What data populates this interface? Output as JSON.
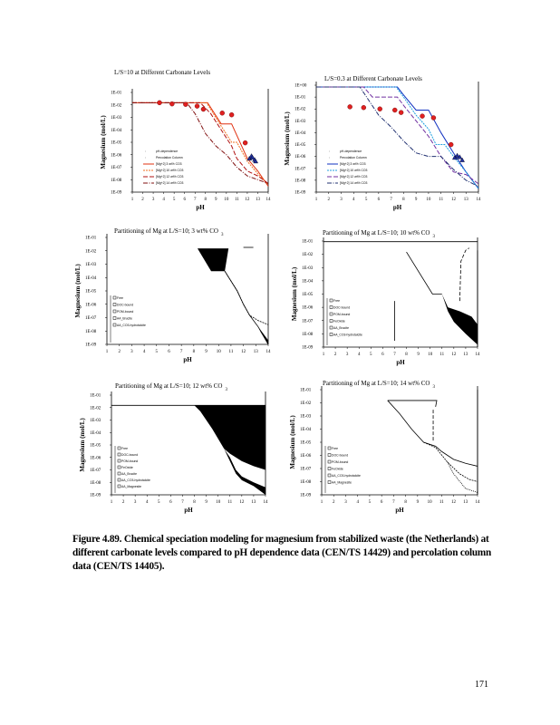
{
  "caption": "Figure 4.89.   Chemical speciation modeling for magnesium from stabilized waste (the Netherlands) at different carbonate levels compared to pH dependence data (CEN/TS 14429) and percolation column data (CEN/TS 14405).",
  "page_number": "171",
  "chart_data": [
    {
      "type": "line",
      "title": "L/S=10   at  Different    Carbonate Levels",
      "xlabel": "pH",
      "ylabel": "Magnesium    (mol/L)",
      "xlim": [
        1,
        14
      ],
      "ylim_exp": [
        -9,
        -1
      ],
      "xticks": [
        "1",
        "2",
        "3",
        "4",
        "5",
        "6",
        "7",
        "8",
        "9",
        "10",
        "11",
        "12",
        "13",
        "14"
      ],
      "yticks": [
        "1E-01",
        "1E-02",
        "1E-03",
        "1E-04",
        "1E-05",
        "1E-06",
        "1E-07",
        "1E-08",
        "1E-09"
      ],
      "legend": [
        "pH-dependence",
        "Percolation   Column",
        "[Mg+2]   3 wt%   CO3",
        "[Mg+2]   10 wt%   CO3",
        "[Mg+2]   12 wt%   CO3",
        "[Mg+2]   14 wt%   CO3"
      ],
      "legend_position": "bottom-left",
      "points": [
        {
          "name": "pH-dependence",
          "color": "#e02020",
          "marker": "circle",
          "x": [
            3.6,
            4.8,
            6.1,
            7.2,
            7.8,
            9.6,
            10.5,
            11.8
          ],
          "y": [
            0.015,
            0.012,
            0.011,
            0.008,
            0.0045,
            0.0022,
            0.0016,
            9e-06
          ]
        },
        {
          "name": "Percolation Column",
          "color": "#2030a0",
          "marker": "triangle",
          "x": [
            12.2,
            12.4,
            12.5,
            12.7,
            12.8
          ],
          "y": [
            5e-07,
            8e-07,
            6e-07,
            4e-07,
            3e-07
          ]
        }
      ],
      "series": [
        {
          "name": "3 wt% CO3",
          "color": "#e03010",
          "dash": "",
          "x": [
            1,
            8.2,
            9.5,
            10.5,
            12,
            13,
            14
          ],
          "y": [
            0.015,
            0.015,
            0.0003,
            0.0003,
            5e-07,
            5e-08,
            3e-09
          ]
        },
        {
          "name": "10 wt% CO3",
          "color": "#f07020",
          "dash": "2,1",
          "x": [
            1,
            8.1,
            9.5,
            10.5,
            11,
            12,
            13,
            14
          ],
          "y": [
            0.015,
            0.015,
            0.0002,
            1e-05,
            1e-05,
            3e-07,
            3e-08,
            4e-09
          ]
        },
        {
          "name": "12 wt% CO3",
          "color": "#b01010",
          "dash": "5,2",
          "x": [
            1,
            7.5,
            8.5,
            9.5,
            10.5,
            11,
            12,
            13,
            14
          ],
          "y": [
            0.015,
            0.015,
            0.002,
            0.0001,
            5e-06,
            5e-07,
            5e-08,
            2e-08,
            5e-09
          ]
        },
        {
          "name": "14 wt% CO3",
          "color": "#801010",
          "dash": "5,1.5,1,1.5",
          "x": [
            1,
            6.2,
            7,
            8,
            9,
            10,
            11,
            12,
            13,
            14
          ],
          "y": [
            0.015,
            0.015,
            0.002,
            5e-05,
            5e-06,
            1e-06,
            1e-07,
            2e-08,
            1e-08,
            5e-09
          ]
        }
      ]
    },
    {
      "type": "line",
      "title": "L/S=0.3     at   Different       Carbonate          Levels",
      "xlabel": "pH",
      "ylabel": "Magnesium    (mol/L)",
      "xlim": [
        1,
        14
      ],
      "ylim_exp": [
        -9,
        0
      ],
      "xticks": [
        "1",
        "2",
        "3",
        "4",
        "5",
        "6",
        "7",
        "8",
        "9",
        "10",
        "11",
        "12",
        "13",
        "14"
      ],
      "yticks": [
        "1E+00",
        "1E-01",
        "1E-02",
        "1E-03",
        "1E-04",
        "1E-05",
        "1E-06",
        "1E-07",
        "1E-08",
        "1E-09"
      ],
      "legend": [
        "pH-dependence",
        "Percolation   Column",
        "[Mg+2]   3 wt% CO3",
        "[Mg+2]   10 wt%   CO3",
        "[Mg+2]   12 wt%   CO3",
        "[Mg+2]   14 wt%   CO3"
      ],
      "legend_position": "bottom-left",
      "points": [
        {
          "name": "pH-dependence",
          "color": "#e02020",
          "marker": "circle",
          "x": [
            3.7,
            4.8,
            6.1,
            7.3,
            7.8,
            9.5,
            10.4,
            11.8
          ],
          "y": [
            0.015,
            0.013,
            0.01,
            0.008,
            0.005,
            0.0025,
            0.0018,
            1e-05
          ]
        },
        {
          "name": "Percolation Column",
          "color": "#2030a0",
          "marker": "triangle",
          "x": [
            12.1,
            12.3,
            12.5,
            12.7
          ],
          "y": [
            8e-07,
            1.2e-06,
            9e-07,
            5e-07
          ]
        }
      ],
      "series": [
        {
          "name": "3 wt% CO3",
          "color": "#1030c0",
          "dash": "",
          "x": [
            1,
            7.5,
            8,
            9,
            10,
            11,
            12,
            13,
            14
          ],
          "y": [
            0.7,
            0.7,
            0.15,
            0.008,
            0.008,
            0.0001,
            2e-06,
            5e-08,
            2e-09
          ]
        },
        {
          "name": "10 wt% CO3",
          "color": "#20a0e0",
          "dash": "2,1",
          "x": [
            1,
            7.4,
            8,
            9,
            10,
            10.6,
            11.3,
            12,
            13,
            14
          ],
          "y": [
            0.7,
            0.7,
            0.1,
            0.003,
            0.0002,
            1e-05,
            1e-05,
            1e-06,
            5e-08,
            2e-09
          ]
        },
        {
          "name": "12 wt% CO3",
          "color": "#7030a0",
          "dash": "5,2",
          "x": [
            1,
            4.8,
            5.5,
            7.5,
            8,
            9,
            10,
            11,
            12,
            13,
            14
          ],
          "y": [
            0.7,
            0.7,
            0.1,
            0.1,
            0.02,
            0.001,
            5e-05,
            1e-06,
            5e-08,
            3e-08,
            5e-09
          ]
        },
        {
          "name": "14 wt% CO3",
          "color": "#203070",
          "dash": "5,1.5,1,1.5",
          "x": [
            1,
            4.5,
            6,
            7,
            8,
            9,
            10,
            11,
            12,
            13,
            14
          ],
          "y": [
            0.7,
            0.7,
            0.003,
            0.0003,
            2e-05,
            2e-06,
            1e-06,
            1e-06,
            8e-08,
            1e-08,
            3e-09
          ]
        }
      ]
    },
    {
      "type": "area",
      "title": "Partitioning        of   Mg at L/S=10;          3   wt%     CO",
      "title_sub": "3",
      "xlabel": "pH",
      "ylabel": "Magnesium    (mol/L)",
      "xlim": [
        1,
        14
      ],
      "ylim_exp": [
        -9,
        -1
      ],
      "xticks": [
        "1",
        "2",
        "3",
        "4",
        "5",
        "6",
        "7",
        "8",
        "9",
        "10",
        "11",
        "12",
        "13",
        "14"
      ],
      "yticks": [
        "1E-01",
        "1E-02",
        "1E-03",
        "1E-04",
        "1E-05",
        "1E-06",
        "1E-07",
        "1E-08",
        "1E-09"
      ],
      "legend": [
        "Free",
        "DOC-bound",
        "POM-bound",
        "AA_Brucite",
        "AA_CO3-hydrotalcite"
      ],
      "legend_position": "bottom-left"
    },
    {
      "type": "area",
      "title": "Partitioning        of   Mg   at   L/S=10;       10   wt%     CO",
      "title_sub": "3",
      "xlabel": "pH",
      "ylabel": "Magnesium    (mol/L)",
      "xlim": [
        1,
        14
      ],
      "ylim_exp": [
        -9,
        -1
      ],
      "xticks": [
        "1",
        "2",
        "3",
        "4",
        "5",
        "6",
        "7",
        "8",
        "9",
        "10",
        "11",
        "12",
        "13",
        "14"
      ],
      "yticks": [
        "1E-01",
        "1E-02",
        "1E-03",
        "1E-04",
        "1E-05",
        "1E-06",
        "1E-07",
        "1E-08",
        "1E-09"
      ],
      "legend": [
        "Free",
        "DOC-bound",
        "POM-bound",
        "FeOxide",
        "AA_Brucite",
        "AA_CO3-hydrotalcite"
      ],
      "legend_position": "bottom-left"
    },
    {
      "type": "area",
      "title": "Partitioning        of   Mg at    L/S=10;        12    wt%     CO",
      "title_sub": "3",
      "xlabel": "pH",
      "ylabel": "Magnesium    (mol/L)",
      "xlim": [
        1,
        14
      ],
      "ylim_exp": [
        -9,
        -1
      ],
      "xticks": [
        "1",
        "2",
        "3",
        "4",
        "5",
        "6",
        "7",
        "8",
        "9",
        "10",
        "11",
        "12",
        "13",
        "14"
      ],
      "yticks": [
        "1E-01",
        "1E-02",
        "1E-03",
        "1E-04",
        "1E-05",
        "1E-06",
        "1E-07",
        "1E-08",
        "1E-09"
      ],
      "legend": [
        "Free",
        "DOC-bound",
        "POM-bound",
        "FeOxide",
        "AA_Brucite",
        "AA_CO3-hydrotalcite",
        "AA_Magnesite"
      ],
      "legend_position": "bottom-left"
    },
    {
      "type": "area",
      "title": "Partitioning        of   Mg at L/S=10;          14    wt%     CO",
      "title_sub": "3",
      "xlabel": "pH",
      "ylabel": "Magnesium    (mol/L)",
      "xlim": [
        1,
        14
      ],
      "ylim_exp": [
        -9,
        -1
      ],
      "xticks": [
        "1",
        "2",
        "3",
        "4",
        "5",
        "6",
        "7",
        "8",
        "9",
        "10",
        "11",
        "12",
        "13",
        "14"
      ],
      "yticks": [
        "1E-01",
        "1E-02",
        "1E-03",
        "1E-04",
        "1E-05",
        "1E-06",
        "1E-07",
        "1E-08",
        "1E-09"
      ],
      "legend": [
        "Free",
        "DOC-bound",
        "POM-bound",
        "FeOxide",
        "AA_CO3-hydrotalcite",
        "AA_Magnesite"
      ],
      "legend_position": "bottom-left"
    }
  ]
}
